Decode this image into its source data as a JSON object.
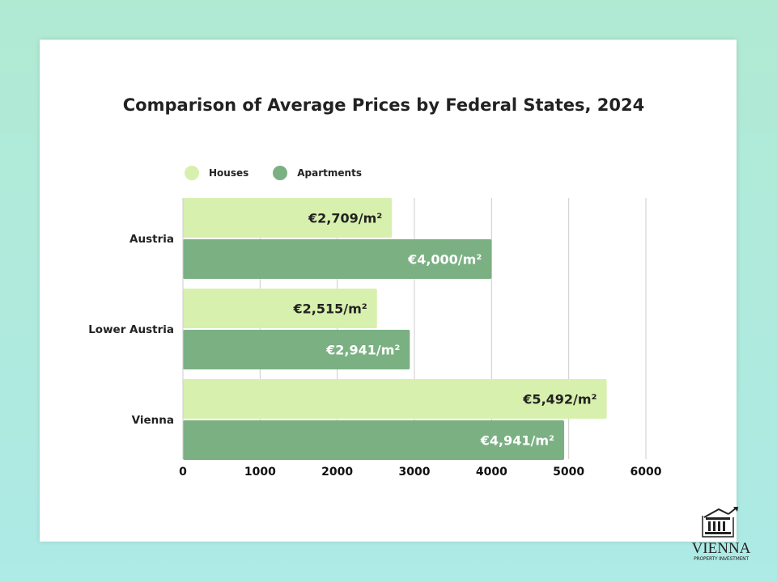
{
  "chart_data": {
    "type": "bar",
    "orientation": "horizontal",
    "title": "Comparison of Average Prices by Federal States, 2024",
    "categories": [
      "Austria",
      "Lower Austria",
      "Vienna"
    ],
    "series": [
      {
        "name": "Houses",
        "color": "#d8f0ad",
        "values": [
          2709,
          2515,
          5492
        ],
        "labels": [
          "€2,709/m²",
          "€2,515/m²",
          "€5,492/m²"
        ]
      },
      {
        "name": "Apartments",
        "color": "#7bb083",
        "values": [
          4000,
          2941,
          4941
        ],
        "labels": [
          "€4,000/m²",
          "€2,941/m²",
          "€4,941/m²"
        ]
      }
    ],
    "xlim": [
      0,
      6000
    ],
    "xticks": [
      "0",
      "1000",
      "2000",
      "3000",
      "4000",
      "5000",
      "6000"
    ],
    "grid": true,
    "legend": "top-left"
  },
  "logo": {
    "name": "VIENNA",
    "sub": "PROPERTY INVESTMENT"
  }
}
